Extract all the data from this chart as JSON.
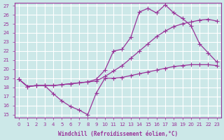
{
  "xlabel": "Windchill (Refroidissement éolien,°C)",
  "background_color": "#cce8e8",
  "line_color": "#993399",
  "grid_color": "#ffffff",
  "xlim": [
    -0.5,
    23.5
  ],
  "ylim": [
    14.7,
    27.3
  ],
  "yticks": [
    15,
    16,
    17,
    18,
    19,
    20,
    21,
    22,
    23,
    24,
    25,
    26,
    27
  ],
  "xticks": [
    0,
    1,
    2,
    3,
    4,
    5,
    6,
    7,
    8,
    9,
    10,
    11,
    12,
    13,
    14,
    15,
    16,
    17,
    18,
    19,
    20,
    21,
    22,
    23
  ],
  "line1_x": [
    0,
    1,
    2,
    3,
    4,
    5,
    6,
    7,
    8,
    9,
    10,
    11,
    12,
    13,
    14,
    15,
    16,
    17,
    18,
    19,
    20,
    21,
    22,
    23
  ],
  "line1_y": [
    18.9,
    18.1,
    18.2,
    18.2,
    17.3,
    16.5,
    15.9,
    15.5,
    15.0,
    17.4,
    19.0,
    19.0,
    19.1,
    19.3,
    19.5,
    19.7,
    19.9,
    20.1,
    20.3,
    20.4,
    20.5,
    20.5,
    20.5,
    20.4
  ],
  "line2_x": [
    0,
    1,
    2,
    3,
    4,
    5,
    6,
    7,
    8,
    9,
    10,
    11,
    12,
    13,
    14,
    15,
    16,
    17,
    18,
    19,
    20,
    21,
    22,
    23
  ],
  "line2_y": [
    18.9,
    18.1,
    18.2,
    18.2,
    18.2,
    18.3,
    18.4,
    18.5,
    18.6,
    18.7,
    19.2,
    19.8,
    20.4,
    21.2,
    22.0,
    22.8,
    23.6,
    24.2,
    24.7,
    25.0,
    25.2,
    25.4,
    25.5,
    25.3
  ],
  "line3_x": [
    0,
    1,
    2,
    3,
    4,
    5,
    6,
    7,
    8,
    9,
    10,
    11,
    12,
    13,
    14,
    15,
    16,
    17,
    18,
    19,
    20,
    21,
    22,
    23
  ],
  "line3_y": [
    18.9,
    18.1,
    18.2,
    18.2,
    18.2,
    18.3,
    18.4,
    18.5,
    18.6,
    18.9,
    19.9,
    22.0,
    22.2,
    23.5,
    26.3,
    26.7,
    26.2,
    27.1,
    26.2,
    25.6,
    24.8,
    22.8,
    21.8,
    20.8
  ],
  "marker_size": 4,
  "linewidth": 0.9
}
